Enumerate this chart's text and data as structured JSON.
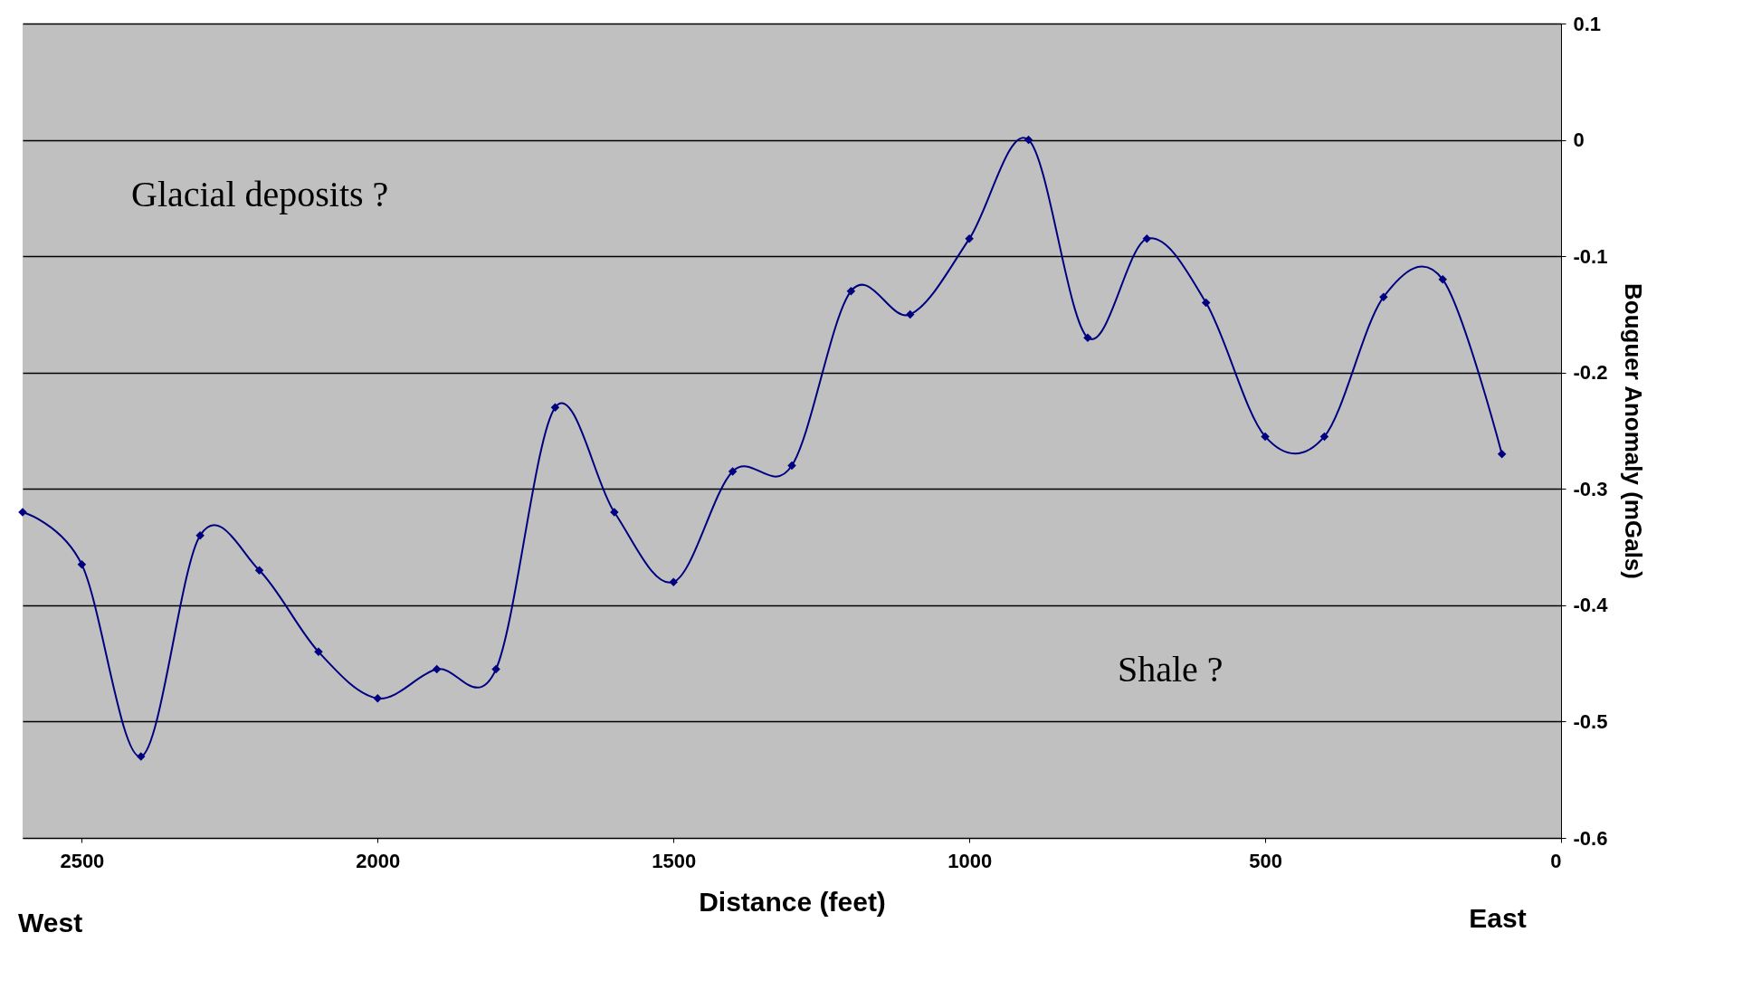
{
  "chart_data": {
    "type": "line",
    "xlabel": "Distance (feet)",
    "ylabel": "Bouguer Anomaly (mGals)",
    "x": [
      2600,
      2500,
      2400,
      2300,
      2200,
      2100,
      2000,
      1900,
      1800,
      1700,
      1600,
      1500,
      1400,
      1300,
      1200,
      1100,
      1000,
      900,
      800,
      700,
      600,
      500,
      400,
      300,
      200,
      100
    ],
    "series": [
      {
        "color": "#000080",
        "values": [
          -0.32,
          -0.365,
          -0.53,
          -0.34,
          -0.37,
          -0.44,
          -0.48,
          -0.455,
          -0.455,
          -0.23,
          -0.32,
          -0.38,
          -0.285,
          -0.28,
          -0.13,
          -0.15,
          -0.085,
          0,
          -0.17,
          -0.085,
          -0.14,
          -0.255,
          -0.255,
          -0.135,
          -0.12,
          -0.27
        ]
      }
    ],
    "xlim": [
      2600,
      0
    ],
    "xticks": [
      2500,
      2000,
      1500,
      1000,
      500,
      0
    ],
    "ylim": [
      -0.6,
      0.1
    ],
    "yticks": [
      0.1,
      0,
      -0.1,
      -0.2,
      -0.3,
      -0.4,
      -0.5,
      -0.6
    ],
    "annotations": [
      "Glacial deposits ?",
      "Shale ?",
      "West",
      "East"
    ],
    "grid": "y",
    "marker": "diamond",
    "line_style": "solid"
  }
}
